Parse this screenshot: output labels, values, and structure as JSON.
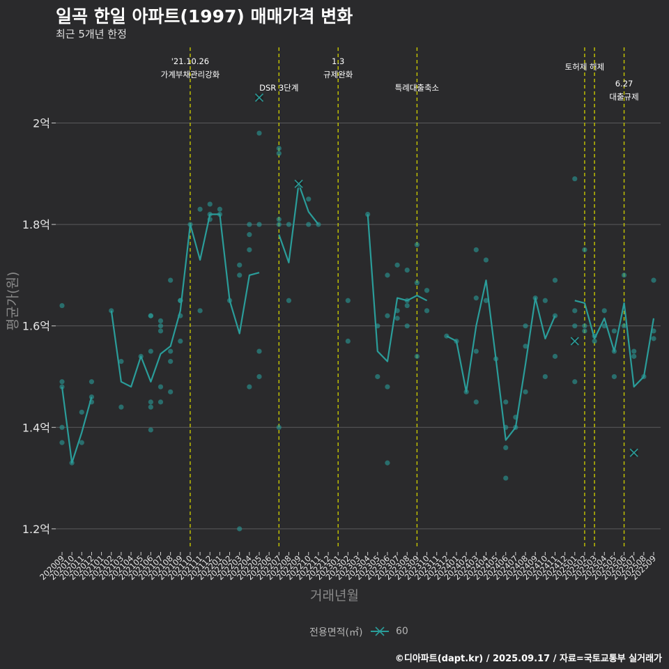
{
  "title": "일곡 한일 아파트(1997) 매매가격 변화",
  "subtitle": "최근 5개년 한정",
  "credit": "©디아파트(dapt.kr) / 2025.09.17 / 자료=국토교통부 실거래가",
  "colors": {
    "background": "#2a2a2c",
    "grid": "#5a5a5c",
    "series": "#2a9d9a",
    "vline": "#c8c800"
  },
  "chart_data": {
    "type": "line",
    "title": "일곡 한일 아파트(1997) 매매가격 변화",
    "subtitle": "최근 5개년 한정",
    "xlabel": "거래년월",
    "ylabel": "평균가(원)",
    "ylim": [
      1.16,
      2.16
    ],
    "yticks": [
      {
        "value": 1.2,
        "label": "1.2억"
      },
      {
        "value": 1.4,
        "label": "1.4억"
      },
      {
        "value": 1.6,
        "label": "1.6억"
      },
      {
        "value": 1.8,
        "label": "1.8억"
      },
      {
        "value": 2.0,
        "label": "2억"
      }
    ],
    "grid": true,
    "legend": {
      "title": "전용면적(㎡)",
      "position": "bottom",
      "entries": [
        "60"
      ]
    },
    "categories": [
      "202009",
      "202010",
      "202011",
      "202012",
      "202101",
      "202102",
      "202103",
      "202104",
      "202105",
      "202106",
      "202107",
      "202108",
      "202109",
      "202110",
      "202111",
      "202112",
      "202201",
      "202202",
      "202203",
      "202204",
      "202205",
      "202206",
      "202207",
      "202208",
      "202209",
      "202210",
      "202211",
      "202212",
      "202301",
      "202302",
      "202303",
      "202304",
      "202305",
      "202306",
      "202307",
      "202308",
      "202309",
      "202310",
      "202311",
      "202312",
      "202401",
      "202402",
      "202403",
      "202404",
      "202405",
      "202406",
      "202407",
      "202408",
      "202409",
      "202410",
      "202411",
      "202412",
      "202501",
      "202502",
      "202503",
      "202504",
      "202505",
      "202506",
      "202507",
      "202508",
      "202509"
    ],
    "series": [
      {
        "name": "60",
        "line": [
          1.48,
          1.33,
          1.39,
          1.46,
          null,
          1.63,
          1.49,
          1.48,
          1.54,
          1.49,
          1.545,
          1.56,
          1.63,
          1.8,
          1.73,
          1.82,
          1.82,
          1.65,
          1.585,
          1.7,
          1.705,
          null,
          1.78,
          1.725,
          1.88,
          1.825,
          1.8,
          null,
          null,
          null,
          null,
          1.82,
          1.55,
          1.53,
          1.655,
          1.65,
          1.66,
          1.65,
          null,
          1.58,
          1.57,
          1.47,
          1.6,
          1.69,
          1.535,
          1.375,
          1.4,
          1.525,
          1.655,
          1.575,
          1.62,
          null,
          1.65,
          1.645,
          1.575,
          1.615,
          1.55,
          1.645,
          1.48,
          1.5,
          1.615
        ],
        "points": [
          [
            0,
            1.4
          ],
          [
            0,
            1.37
          ],
          [
            0,
            1.48
          ],
          [
            0,
            1.49
          ],
          [
            0,
            1.64
          ],
          [
            1,
            1.33
          ],
          [
            2,
            1.43
          ],
          [
            2,
            1.37
          ],
          [
            3,
            1.45
          ],
          [
            3,
            1.46
          ],
          [
            3,
            1.49
          ],
          [
            5,
            1.63
          ],
          [
            6,
            1.53
          ],
          [
            6,
            1.44
          ],
          [
            8,
            1.54
          ],
          [
            9,
            1.395
          ],
          [
            9,
            1.44
          ],
          [
            9,
            1.45
          ],
          [
            9,
            1.55
          ],
          [
            9,
            1.62
          ],
          [
            9,
            1.62
          ],
          [
            10,
            1.45
          ],
          [
            10,
            1.48
          ],
          [
            10,
            1.59
          ],
          [
            10,
            1.6
          ],
          [
            10,
            1.61
          ],
          [
            11,
            1.47
          ],
          [
            11,
            1.53
          ],
          [
            11,
            1.55
          ],
          [
            11,
            1.69
          ],
          [
            12,
            1.57
          ],
          [
            12,
            1.62
          ],
          [
            12,
            1.65
          ],
          [
            12,
            1.65
          ],
          [
            13,
            1.8
          ],
          [
            14,
            1.63
          ],
          [
            14,
            1.83
          ],
          [
            15,
            1.81
          ],
          [
            15,
            1.82
          ],
          [
            15,
            1.84
          ],
          [
            16,
            1.82
          ],
          [
            16,
            1.83
          ],
          [
            17,
            1.65
          ],
          [
            18,
            1.2
          ],
          [
            18,
            1.7
          ],
          [
            18,
            1.72
          ],
          [
            19,
            1.48
          ],
          [
            19,
            1.75
          ],
          [
            19,
            1.78
          ],
          [
            19,
            1.8
          ],
          [
            20,
            1.5
          ],
          [
            20,
            1.55
          ],
          [
            20,
            1.8
          ],
          [
            20,
            1.98
          ],
          [
            22,
            1.4
          ],
          [
            22,
            1.8
          ],
          [
            22,
            1.81
          ],
          [
            22,
            1.94
          ],
          [
            22,
            1.95
          ],
          [
            23,
            1.65
          ],
          [
            23,
            1.8
          ],
          [
            25,
            1.8
          ],
          [
            25,
            1.85
          ],
          [
            26,
            1.8
          ],
          [
            29,
            1.65
          ],
          [
            29,
            1.57
          ],
          [
            31,
            1.82
          ],
          [
            32,
            1.5
          ],
          [
            32,
            1.6
          ],
          [
            33,
            1.33
          ],
          [
            33,
            1.48
          ],
          [
            33,
            1.62
          ],
          [
            33,
            1.7
          ],
          [
            34,
            1.615
          ],
          [
            34,
            1.63
          ],
          [
            34,
            1.72
          ],
          [
            35,
            1.6
          ],
          [
            35,
            1.64
          ],
          [
            35,
            1.65
          ],
          [
            35,
            1.71
          ],
          [
            36,
            1.54
          ],
          [
            36,
            1.685
          ],
          [
            36,
            1.76
          ],
          [
            37,
            1.63
          ],
          [
            37,
            1.67
          ],
          [
            39,
            1.58
          ],
          [
            40,
            1.57
          ],
          [
            41,
            1.47
          ],
          [
            42,
            1.45
          ],
          [
            42,
            1.55
          ],
          [
            42,
            1.655
          ],
          [
            42,
            1.75
          ],
          [
            43,
            1.65
          ],
          [
            43,
            1.73
          ],
          [
            44,
            1.535
          ],
          [
            45,
            1.3
          ],
          [
            45,
            1.36
          ],
          [
            45,
            1.4
          ],
          [
            45,
            1.45
          ],
          [
            46,
            1.4
          ],
          [
            46,
            1.42
          ],
          [
            47,
            1.47
          ],
          [
            47,
            1.56
          ],
          [
            47,
            1.6
          ],
          [
            48,
            1.655
          ],
          [
            49,
            1.5
          ],
          [
            49,
            1.65
          ],
          [
            50,
            1.54
          ],
          [
            50,
            1.62
          ],
          [
            50,
            1.69
          ],
          [
            52,
            1.49
          ],
          [
            52,
            1.6
          ],
          [
            52,
            1.63
          ],
          [
            52,
            1.89
          ],
          [
            53,
            1.59
          ],
          [
            53,
            1.6
          ],
          [
            53,
            1.75
          ],
          [
            54,
            1.57
          ],
          [
            54,
            1.58
          ],
          [
            55,
            1.6
          ],
          [
            55,
            1.63
          ],
          [
            56,
            1.5
          ],
          [
            56,
            1.55
          ],
          [
            56,
            1.59
          ],
          [
            57,
            1.6
          ],
          [
            57,
            1.7
          ],
          [
            58,
            1.54
          ],
          [
            58,
            1.55
          ],
          [
            59,
            1.5
          ],
          [
            60,
            1.575
          ],
          [
            60,
            1.59
          ],
          [
            60,
            1.69
          ]
        ],
        "crosses": [
          [
            20,
            2.05
          ],
          [
            24,
            1.88
          ],
          [
            52,
            1.57
          ],
          [
            58,
            1.35
          ]
        ]
      }
    ],
    "events": [
      {
        "index": 13,
        "label1": "'21.10.26",
        "label2": "가계부채관리강화",
        "row": 0
      },
      {
        "index": 22,
        "label1": "",
        "label2": "DSR 3단계",
        "row": 2
      },
      {
        "index": 28,
        "label1": "1.3",
        "label2": "규제완화",
        "row": 0
      },
      {
        "index": 36,
        "label1": "",
        "label2": "특례대출축소",
        "row": 2
      },
      {
        "index": 53,
        "label1": "",
        "label2": "토허제 해제",
        "row": 1
      },
      {
        "index": 54,
        "label1": "",
        "label2": "",
        "row": 1
      },
      {
        "index": 57,
        "label1": "6.27",
        "label2": "대출규제",
        "row": 3
      }
    ]
  }
}
